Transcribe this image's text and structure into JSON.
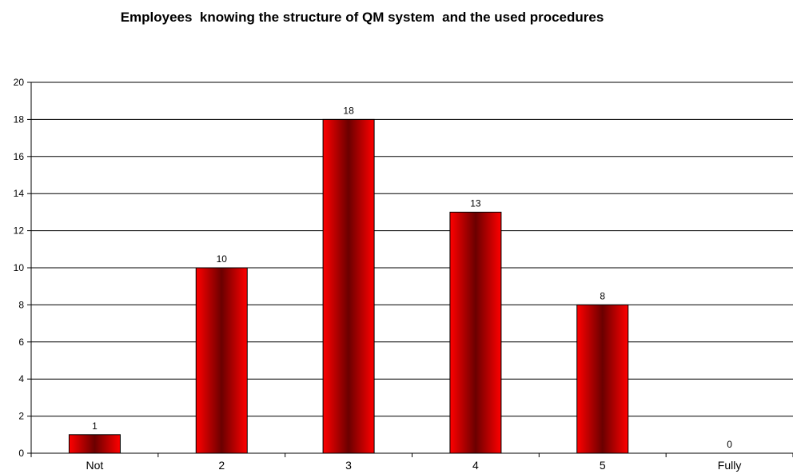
{
  "chart_data": {
    "type": "bar",
    "title": "Employees  knowing the structure of QM system  and the used procedures",
    "categories": [
      "Not",
      "2",
      "3",
      "4",
      "5",
      "Fully"
    ],
    "values": [
      1,
      10,
      18,
      13,
      8,
      0
    ],
    "data_labels": [
      "1",
      "10",
      "18",
      "13",
      "8",
      "0"
    ],
    "ylim": [
      0,
      20
    ],
    "yticks": [
      0,
      2,
      4,
      6,
      8,
      10,
      12,
      14,
      16,
      18,
      20
    ],
    "xlabel": "",
    "ylabel": "",
    "grid": true,
    "legend": "none",
    "colors": {
      "bar_edge": "#ff0000",
      "bar_center": "#6b0000",
      "bar_outline": "#000000",
      "grid": "#000000"
    }
  }
}
